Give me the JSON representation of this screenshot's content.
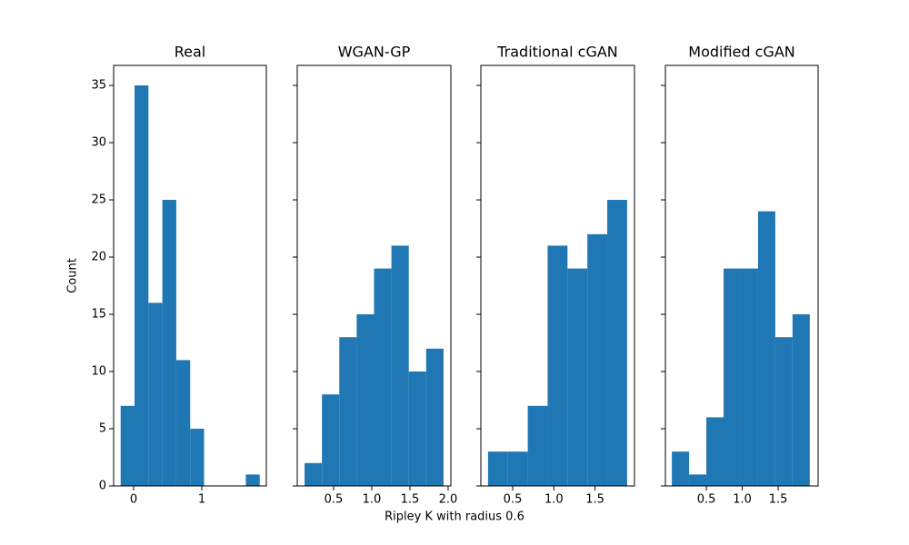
{
  "xlabel": "Ripley K with radius 0.6",
  "chart_data": [
    {
      "type": "histogram",
      "title": "Real",
      "ylabel": "Count",
      "color": "#1f77b4",
      "bins": [
        -0.19,
        0.014,
        0.218,
        0.422,
        0.626,
        0.83,
        1.034,
        1.238,
        1.442,
        1.646,
        1.85
      ],
      "counts": [
        7,
        35,
        16,
        25,
        11,
        5,
        0,
        0,
        0,
        1
      ],
      "xlim": [
        -0.293,
        1.947
      ],
      "xticks": [
        0,
        1
      ],
      "ylim": [
        0,
        36.75
      ],
      "yticks": [
        0,
        5,
        10,
        15,
        20,
        25,
        30,
        35
      ],
      "ytick_labels": true
    },
    {
      "type": "histogram",
      "title": "WGAN-GP",
      "color": "#1f77b4",
      "bins": [
        0.12,
        0.3475,
        0.575,
        0.8025,
        1.03,
        1.2575,
        1.485,
        1.7125,
        1.94
      ],
      "counts": [
        2,
        8,
        13,
        15,
        19,
        21,
        10,
        12
      ],
      "xlim": [
        0.024,
        2.036
      ],
      "xticks": [
        0.5,
        {
          "value": 1.0,
          "label": "1.0"
        },
        1.5,
        {
          "value": 2.0,
          "label": "2.0"
        }
      ],
      "ylim": [
        0,
        36.75
      ],
      "yticks": [
        0,
        5,
        10,
        15,
        20,
        25,
        30,
        35
      ],
      "ytick_labels": false
    },
    {
      "type": "histogram",
      "title": "Traditional cGAN",
      "color": "#1f77b4",
      "bins": [
        0.2,
        0.4415,
        0.683,
        0.9245,
        1.166,
        1.4075,
        1.649,
        1.8905
      ],
      "counts": [
        3,
        3,
        7,
        21,
        19,
        22,
        25
      ],
      "xlim": [
        0.113,
        1.98
      ],
      "xticks": [
        0.5,
        {
          "value": 1.0,
          "label": "1.0"
        },
        1.5
      ],
      "ylim": [
        0,
        36.75
      ],
      "yticks": [
        0,
        5,
        10,
        15,
        20,
        25,
        30,
        35
      ],
      "ytick_labels": false
    },
    {
      "type": "histogram",
      "title": "Modified cGAN",
      "color": "#1f77b4",
      "bins": [
        0.02,
        0.26,
        0.5,
        0.74,
        0.98,
        1.22,
        1.46,
        1.7,
        1.94
      ],
      "counts": [
        3,
        1,
        6,
        19,
        19,
        24,
        13,
        15
      ],
      "xlim": [
        -0.07,
        2.056
      ],
      "xticks": [
        0.5,
        {
          "value": 1.0,
          "label": "1.0"
        },
        1.5
      ],
      "ylim": [
        0,
        36.75
      ],
      "yticks": [
        0,
        5,
        10,
        15,
        20,
        25,
        30,
        35
      ],
      "ytick_labels": false
    }
  ]
}
